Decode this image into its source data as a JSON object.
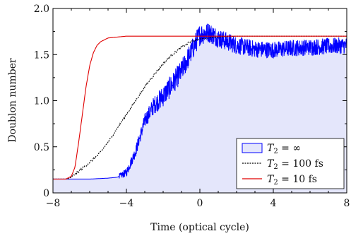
{
  "chart_data": {
    "type": "area",
    "xlabel": "Time (optical cycle)",
    "ylabel": "Doublon number",
    "xlim": [
      -8,
      8
    ],
    "ylim": [
      0,
      2.0
    ],
    "x_ticks": [
      -8,
      -4,
      0,
      4,
      8
    ],
    "x_tick_labels": [
      "−8",
      "−4",
      "0",
      "4",
      "8"
    ],
    "y_ticks": [
      0,
      0.5,
      1.0,
      1.5,
      2.0
    ],
    "y_tick_labels": [
      "0",
      "0.5",
      "1.0",
      "1.5",
      "2.0"
    ],
    "grid": false,
    "legend_position": "bottom-right",
    "series": [
      {
        "name_var": "T",
        "name_sub": "2",
        "name_rest": " = ∞",
        "style": "filled-area-noisy",
        "color": "#0000ff",
        "fill": "#e4e6fb",
        "x": [
          -8,
          -6,
          -5,
          -4.5,
          -4,
          -3.5,
          -3,
          -2.5,
          -2,
          -1.5,
          -1,
          -0.5,
          0,
          0.5,
          1,
          1.5,
          2,
          3,
          4,
          5,
          6,
          7,
          8
        ],
        "y": [
          0.15,
          0.15,
          0.16,
          0.17,
          0.22,
          0.45,
          0.78,
          0.95,
          1.05,
          1.18,
          1.32,
          1.52,
          1.72,
          1.74,
          1.68,
          1.64,
          1.6,
          1.56,
          1.55,
          1.57,
          1.58,
          1.59,
          1.6
        ]
      },
      {
        "name_var": "T",
        "name_sub": "2",
        "name_rest": " = 100 fs",
        "style": "dotted",
        "color": "#000000",
        "x": [
          -8,
          -7.2,
          -7,
          -6.5,
          -6,
          -5.5,
          -5,
          -4.5,
          -4,
          -3.5,
          -3,
          -2.5,
          -2,
          -1.5,
          -1,
          -0.5,
          0,
          1,
          2,
          4,
          6,
          8
        ],
        "y": [
          0.15,
          0.15,
          0.17,
          0.25,
          0.33,
          0.42,
          0.55,
          0.7,
          0.85,
          1.0,
          1.15,
          1.28,
          1.4,
          1.5,
          1.58,
          1.64,
          1.67,
          1.69,
          1.7,
          1.7,
          1.7,
          1.7
        ]
      },
      {
        "name_var": "T",
        "name_sub": "2",
        "name_rest": " = 10 fs",
        "style": "solid",
        "color": "#e00000",
        "x": [
          -8,
          -7.3,
          -7,
          -6.8,
          -6.6,
          -6.4,
          -6.2,
          -6,
          -5.8,
          -5.6,
          -5.4,
          -5.2,
          -5,
          -4.5,
          -4,
          -3,
          -2,
          0,
          8
        ],
        "y": [
          0.15,
          0.15,
          0.18,
          0.28,
          0.55,
          0.85,
          1.15,
          1.38,
          1.52,
          1.6,
          1.64,
          1.66,
          1.68,
          1.69,
          1.7,
          1.7,
          1.7,
          1.7,
          1.7
        ]
      }
    ]
  }
}
